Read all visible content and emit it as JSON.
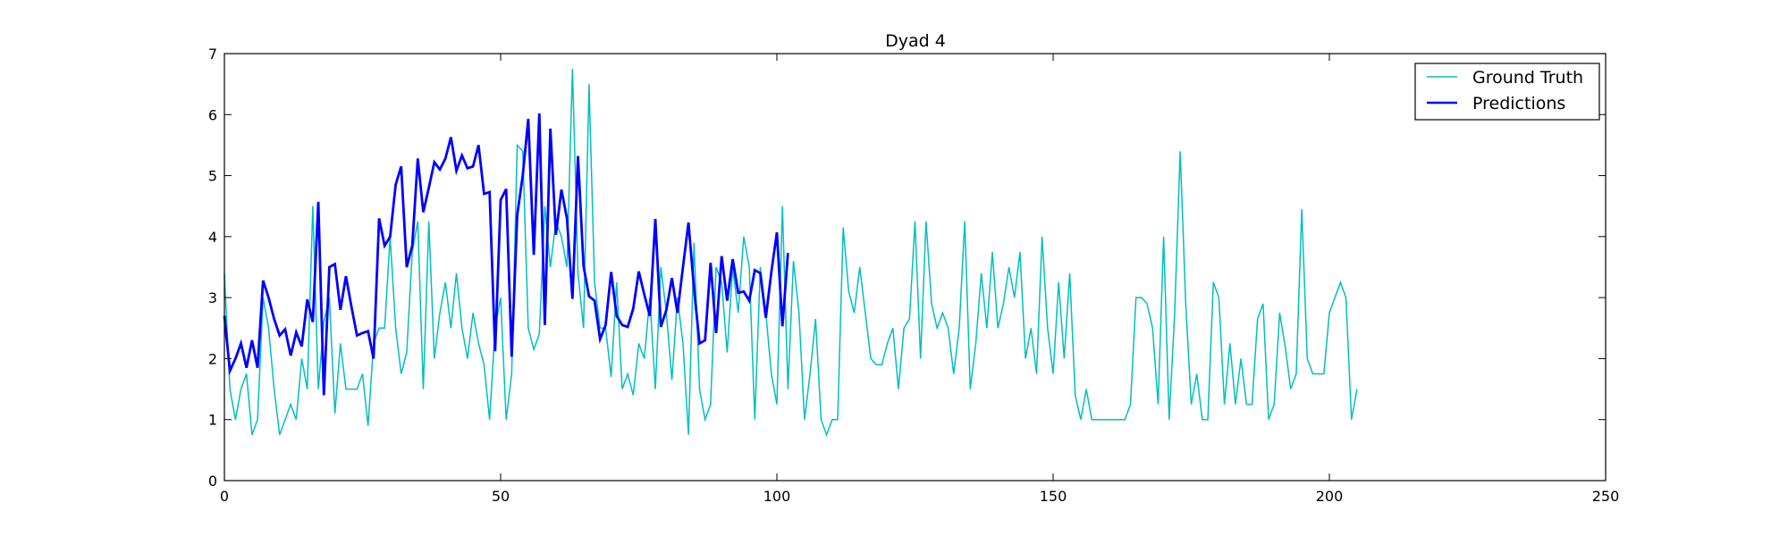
{
  "chart_data": {
    "type": "line",
    "title": "Dyad 4",
    "xlabel": "",
    "ylabel": "",
    "xlim": [
      0,
      250
    ],
    "ylim": [
      0,
      7
    ],
    "xticks": [
      "0",
      "50",
      "100",
      "150",
      "200",
      "250"
    ],
    "yticks": [
      "0",
      "1",
      "2",
      "3",
      "4",
      "5",
      "6",
      "7"
    ],
    "grid": false,
    "legend_position": "top-right",
    "series": [
      {
        "name": "Ground Truth",
        "color": "#00bfbf",
        "x_start": 0,
        "values": [
          3.4,
          1.5,
          1.0,
          1.5,
          1.75,
          0.75,
          1.0,
          3.0,
          2.5,
          1.5,
          0.75,
          1.0,
          1.25,
          1.0,
          2.0,
          1.5,
          4.5,
          1.5,
          2.6,
          3.0,
          1.1,
          2.25,
          1.5,
          1.5,
          1.5,
          1.75,
          0.9,
          2.25,
          2.5,
          2.5,
          4.0,
          2.5,
          1.75,
          2.1,
          3.75,
          4.25,
          1.5,
          4.25,
          2.0,
          2.75,
          3.25,
          2.5,
          3.4,
          2.5,
          2.0,
          2.75,
          2.25,
          1.9,
          1.0,
          2.5,
          3.0,
          1.0,
          1.75,
          5.5,
          5.4,
          2.5,
          2.15,
          2.4,
          4.5,
          3.5,
          4.25,
          4.0,
          3.5,
          6.75,
          3.4,
          2.5,
          6.5,
          3.25,
          2.5,
          2.5,
          1.7,
          3.25,
          1.5,
          1.75,
          1.4,
          2.25,
          2.0,
          3.0,
          1.5,
          3.5,
          2.75,
          1.65,
          3.0,
          2.25,
          0.75,
          3.9,
          1.5,
          1.0,
          1.25,
          3.5,
          3.25,
          2.1,
          3.5,
          2.75,
          4.0,
          3.5,
          1.0,
          3.5,
          2.75,
          1.75,
          1.25,
          4.5,
          1.5,
          3.6,
          2.75,
          1.0,
          1.75,
          2.65,
          1.0,
          0.75,
          1.0,
          1.0,
          4.15,
          3.1,
          2.75,
          3.5,
          2.75,
          2.0,
          1.9,
          1.9,
          2.25,
          2.5,
          1.5,
          2.5,
          2.65,
          4.25,
          2.0,
          4.25,
          2.9,
          2.5,
          2.75,
          2.5,
          1.75,
          2.5,
          4.25,
          1.5,
          2.25,
          3.4,
          2.5,
          3.75,
          2.5,
          2.9,
          3.5,
          3.0,
          3.75,
          2.0,
          2.5,
          1.75,
          4.0,
          2.5,
          1.75,
          3.25,
          2.0,
          3.4,
          1.4,
          1.0,
          1.5,
          1.0,
          1.0,
          1.0,
          1.0,
          1.0,
          1.0,
          1.0,
          1.25,
          3.0,
          3.0,
          2.9,
          2.5,
          1.25,
          4.0,
          1.0,
          2.75,
          5.4,
          2.9,
          1.25,
          1.75,
          1.0,
          1.0,
          3.25,
          3.0,
          1.25,
          2.25,
          1.25,
          2.0,
          1.25,
          1.25,
          2.65,
          2.9,
          1.0,
          1.25,
          2.75,
          2.2,
          1.5,
          1.75,
          4.45,
          2.0,
          1.75,
          1.75,
          1.75,
          2.75,
          3.0,
          3.25,
          3.0,
          1.0,
          1.5
        ]
      },
      {
        "name": "Predictions",
        "color": "#0000ff",
        "x_start": 0,
        "values": [
          2.7,
          1.8,
          2.0,
          2.25,
          1.85,
          2.3,
          1.85,
          3.28,
          3.0,
          2.65,
          2.38,
          2.48,
          2.05,
          2.43,
          2.2,
          2.97,
          2.6,
          4.57,
          1.4,
          3.5,
          3.55,
          2.8,
          3.35,
          2.85,
          2.38,
          2.42,
          2.45,
          2.0,
          4.3,
          3.85,
          4.0,
          4.85,
          5.15,
          3.5,
          3.85,
          5.28,
          4.4,
          4.8,
          5.22,
          5.1,
          5.28,
          5.63,
          5.08,
          5.33,
          5.12,
          5.15,
          5.5,
          4.7,
          4.73,
          2.12,
          4.6,
          4.78,
          2.03,
          4.35,
          5.0,
          5.93,
          3.7,
          6.02,
          2.55,
          5.77,
          4.03,
          4.77,
          4.3,
          2.98,
          5.32,
          3.52,
          3.02,
          2.95,
          2.32,
          2.55,
          3.42,
          2.7,
          2.55,
          2.52,
          2.82,
          3.43,
          3.05,
          2.7,
          4.29,
          2.52,
          2.8,
          3.32,
          2.75,
          3.5,
          4.23,
          3.15,
          2.25,
          2.3,
          3.57,
          2.42,
          3.68,
          2.95,
          3.63,
          3.08,
          3.1,
          2.95,
          3.45,
          3.4,
          2.67,
          3.42,
          4.07,
          2.53,
          3.73
        ]
      }
    ]
  }
}
